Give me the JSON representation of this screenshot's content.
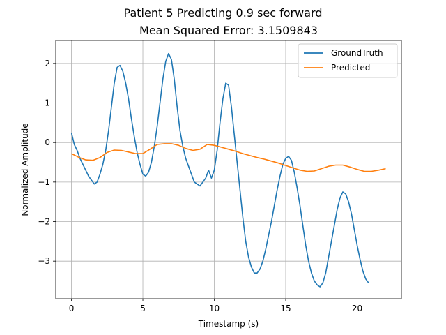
{
  "chart_data": {
    "type": "line",
    "title": "Patient 5 Predicting 0.9 sec forward",
    "subtitle": "Mean Squared Error: 3.1509843",
    "xlabel": "Timestamp (s)",
    "ylabel": "Normalized Amplitude",
    "xlim": [
      -1.1,
      23.1
    ],
    "ylim": [
      -3.95,
      2.58
    ],
    "xticks": [
      0,
      5,
      10,
      15,
      20
    ],
    "yticks": [
      -3,
      -2,
      -1,
      0,
      1,
      2
    ],
    "xtick_labels": [
      "0",
      "5",
      "10",
      "15",
      "20"
    ],
    "ytick_labels": [
      "−3",
      "−2",
      "−1",
      "0",
      "1",
      "2"
    ],
    "grid": true,
    "legend_position": "top-right",
    "colors": {
      "GroundTruth": "#1f77b4",
      "Predicted": "#ff7f0e"
    },
    "series": [
      {
        "name": "GroundTruth",
        "color": "#1f77b4",
        "points": [
          [
            0.0,
            0.25
          ],
          [
            0.2,
            -0.05
          ],
          [
            0.4,
            -0.2
          ],
          [
            0.6,
            -0.4
          ],
          [
            0.8,
            -0.55
          ],
          [
            1.0,
            -0.7
          ],
          [
            1.2,
            -0.85
          ],
          [
            1.4,
            -0.95
          ],
          [
            1.6,
            -1.05
          ],
          [
            1.8,
            -1.0
          ],
          [
            2.0,
            -0.8
          ],
          [
            2.2,
            -0.55
          ],
          [
            2.4,
            -0.2
          ],
          [
            2.6,
            0.3
          ],
          [
            2.8,
            0.9
          ],
          [
            3.0,
            1.5
          ],
          [
            3.2,
            1.9
          ],
          [
            3.4,
            1.95
          ],
          [
            3.6,
            1.8
          ],
          [
            3.8,
            1.5
          ],
          [
            4.0,
            1.1
          ],
          [
            4.2,
            0.6
          ],
          [
            4.4,
            0.15
          ],
          [
            4.6,
            -0.25
          ],
          [
            4.8,
            -0.55
          ],
          [
            5.0,
            -0.8
          ],
          [
            5.2,
            -0.85
          ],
          [
            5.4,
            -0.75
          ],
          [
            5.6,
            -0.5
          ],
          [
            5.8,
            -0.1
          ],
          [
            6.0,
            0.4
          ],
          [
            6.2,
            1.0
          ],
          [
            6.4,
            1.6
          ],
          [
            6.6,
            2.05
          ],
          [
            6.8,
            2.25
          ],
          [
            7.0,
            2.1
          ],
          [
            7.2,
            1.6
          ],
          [
            7.4,
            0.9
          ],
          [
            7.6,
            0.3
          ],
          [
            7.8,
            -0.1
          ],
          [
            8.0,
            -0.4
          ],
          [
            8.2,
            -0.6
          ],
          [
            8.4,
            -0.8
          ],
          [
            8.6,
            -1.0
          ],
          [
            8.8,
            -1.05
          ],
          [
            9.0,
            -1.1
          ],
          [
            9.2,
            -1.0
          ],
          [
            9.4,
            -0.9
          ],
          [
            9.6,
            -0.7
          ],
          [
            9.8,
            -0.9
          ],
          [
            10.0,
            -0.7
          ],
          [
            10.2,
            -0.2
          ],
          [
            10.4,
            0.5
          ],
          [
            10.6,
            1.1
          ],
          [
            10.8,
            1.5
          ],
          [
            11.0,
            1.45
          ],
          [
            11.2,
            0.9
          ],
          [
            11.4,
            0.2
          ],
          [
            11.6,
            -0.5
          ],
          [
            11.8,
            -1.2
          ],
          [
            12.0,
            -1.9
          ],
          [
            12.2,
            -2.5
          ],
          [
            12.4,
            -2.9
          ],
          [
            12.6,
            -3.15
          ],
          [
            12.8,
            -3.3
          ],
          [
            13.0,
            -3.3
          ],
          [
            13.2,
            -3.2
          ],
          [
            13.4,
            -3.0
          ],
          [
            13.6,
            -2.7
          ],
          [
            13.8,
            -2.35
          ],
          [
            14.0,
            -2.0
          ],
          [
            14.2,
            -1.6
          ],
          [
            14.4,
            -1.2
          ],
          [
            14.6,
            -0.85
          ],
          [
            14.8,
            -0.55
          ],
          [
            15.0,
            -0.4
          ],
          [
            15.2,
            -0.35
          ],
          [
            15.4,
            -0.45
          ],
          [
            15.6,
            -0.75
          ],
          [
            15.8,
            -1.15
          ],
          [
            16.0,
            -1.6
          ],
          [
            16.2,
            -2.1
          ],
          [
            16.4,
            -2.6
          ],
          [
            16.6,
            -3.0
          ],
          [
            16.8,
            -3.3
          ],
          [
            17.0,
            -3.5
          ],
          [
            17.2,
            -3.6
          ],
          [
            17.4,
            -3.65
          ],
          [
            17.6,
            -3.55
          ],
          [
            17.8,
            -3.3
          ],
          [
            18.0,
            -2.9
          ],
          [
            18.2,
            -2.5
          ],
          [
            18.4,
            -2.1
          ],
          [
            18.6,
            -1.7
          ],
          [
            18.8,
            -1.4
          ],
          [
            19.0,
            -1.25
          ],
          [
            19.2,
            -1.3
          ],
          [
            19.4,
            -1.5
          ],
          [
            19.6,
            -1.8
          ],
          [
            19.8,
            -2.2
          ],
          [
            20.0,
            -2.6
          ],
          [
            20.2,
            -2.95
          ],
          [
            20.4,
            -3.25
          ],
          [
            20.6,
            -3.45
          ],
          [
            20.8,
            -3.55
          ]
        ]
      },
      {
        "name": "Predicted",
        "color": "#ff7f0e",
        "points": [
          [
            0.0,
            -0.28
          ],
          [
            0.5,
            -0.37
          ],
          [
            1.0,
            -0.44
          ],
          [
            1.5,
            -0.45
          ],
          [
            2.0,
            -0.38
          ],
          [
            2.5,
            -0.25
          ],
          [
            3.0,
            -0.19
          ],
          [
            3.5,
            -0.2
          ],
          [
            4.0,
            -0.24
          ],
          [
            4.5,
            -0.28
          ],
          [
            5.0,
            -0.28
          ],
          [
            5.5,
            -0.17
          ],
          [
            6.0,
            -0.05
          ],
          [
            6.5,
            -0.03
          ],
          [
            7.0,
            -0.03
          ],
          [
            7.5,
            -0.07
          ],
          [
            8.0,
            -0.15
          ],
          [
            8.5,
            -0.2
          ],
          [
            9.0,
            -0.17
          ],
          [
            9.5,
            -0.05
          ],
          [
            10.0,
            -0.07
          ],
          [
            10.5,
            -0.12
          ],
          [
            11.0,
            -0.17
          ],
          [
            11.5,
            -0.22
          ],
          [
            12.0,
            -0.28
          ],
          [
            12.5,
            -0.33
          ],
          [
            13.0,
            -0.38
          ],
          [
            13.5,
            -0.42
          ],
          [
            14.0,
            -0.47
          ],
          [
            14.5,
            -0.52
          ],
          [
            15.0,
            -0.58
          ],
          [
            15.5,
            -0.64
          ],
          [
            16.0,
            -0.7
          ],
          [
            16.5,
            -0.73
          ],
          [
            17.0,
            -0.72
          ],
          [
            17.5,
            -0.66
          ],
          [
            18.0,
            -0.6
          ],
          [
            18.5,
            -0.57
          ],
          [
            19.0,
            -0.57
          ],
          [
            19.5,
            -0.62
          ],
          [
            20.0,
            -0.68
          ],
          [
            20.5,
            -0.73
          ],
          [
            21.0,
            -0.73
          ],
          [
            21.5,
            -0.7
          ],
          [
            22.0,
            -0.66
          ]
        ]
      }
    ]
  }
}
